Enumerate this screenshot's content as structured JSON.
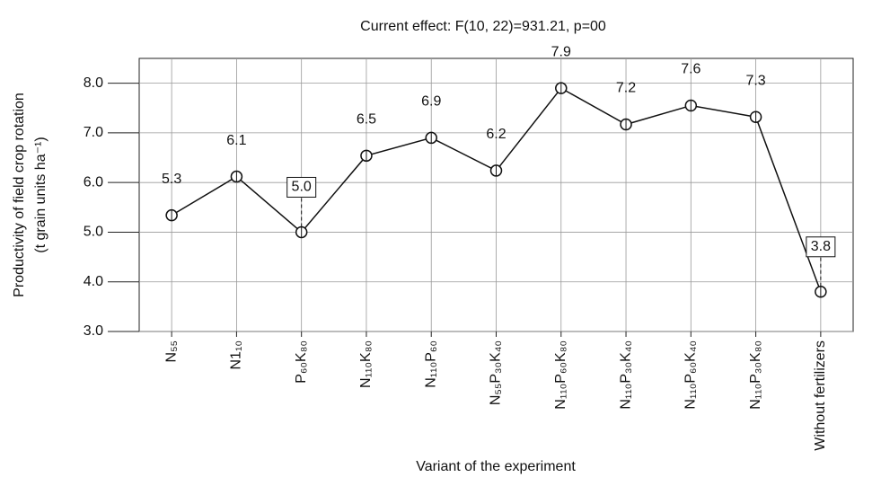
{
  "chart_data": {
    "type": "line",
    "title": "Current effect: F(10, 22)=931.21, p=00",
    "x_label": "Variant of the experiment",
    "y_label": [
      "Productivity of field crop rotation",
      "(t grain units ha⁻¹)"
    ],
    "categories": [
      "N₅₅",
      "N1₁₀",
      "P₆₀K₈₀",
      "N₁₁₀K₈₀",
      "N₁₁₀P₆₀",
      "N₅₅P₃₀K₄₀",
      "N₁₁₀P₆₀K₈₀",
      "N₁₁₀P₃₀K₄₀",
      "N₁₁₀P₆₀K₄₀",
      "N₁₁₀P₃₀K₈₀",
      "Without fertilizers"
    ],
    "values": [
      5.34,
      6.12,
      5.0,
      6.54,
      6.9,
      6.24,
      7.9,
      7.17,
      7.55,
      7.32,
      3.8
    ],
    "value_labels": [
      "5.3",
      "6.1",
      "5.0",
      "6.5",
      "6.9",
      "6.2",
      "7.9",
      "7.2",
      "7.6",
      "7.3",
      "3.8"
    ],
    "boxed": [
      2,
      10
    ],
    "color": "#111111",
    "ylim": [
      3,
      8.5
    ],
    "yticks": [
      {
        "value": 3,
        "label": "3.0"
      },
      {
        "value": 4,
        "label": "4.0"
      },
      {
        "value": 5,
        "label": "5.0"
      },
      {
        "value": 6,
        "label": "6.0"
      },
      {
        "value": 7,
        "label": "7.0"
      },
      {
        "value": 8,
        "label": "8.0"
      }
    ],
    "grid": true
  }
}
